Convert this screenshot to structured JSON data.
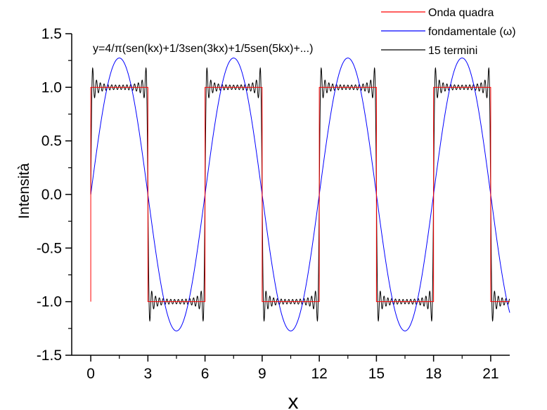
{
  "chart_data": {
    "type": "line",
    "title": "",
    "xlabel": "x",
    "ylabel": "Intensità",
    "xlim": [
      -1,
      22
    ],
    "ylim": [
      -1.5,
      1.5
    ],
    "x_ticks": [
      0,
      3,
      6,
      9,
      12,
      15,
      18,
      21
    ],
    "y_ticks": [
      1.5,
      1.0,
      0.5,
      0.0,
      -0.5,
      -1.0,
      -1.5
    ],
    "x_tick_labels": [
      "0",
      "3",
      "6",
      "9",
      "12",
      "15",
      "18",
      "21"
    ],
    "y_tick_labels": [
      "1.5",
      "1.0",
      "0.5",
      "0.0",
      "-0.5",
      "-1.0",
      "-1.5"
    ],
    "grid": false,
    "legend_position": "top-right",
    "annotation": "y=4/π(sen(kx)+1/3sen(3kx)+1/5sen(5kx)+...)",
    "series": [
      {
        "name": "Onda quadra",
        "color": "#ff0000",
        "x": [
          0,
          0,
          3,
          3,
          6,
          6,
          9,
          9,
          12,
          12,
          15,
          15,
          18,
          18,
          21,
          21,
          22
        ],
        "y": [
          -1,
          1,
          1,
          -1,
          -1,
          1,
          1,
          -1,
          -1,
          1,
          1,
          -1,
          -1,
          1,
          1,
          -1,
          -1
        ]
      },
      {
        "name": "fondamentale (ω)",
        "color": "#0000ff",
        "function": "y = 4/π · sin(πx/3)",
        "x_range": [
          0,
          22
        ]
      },
      {
        "name": "15 termini",
        "color": "#000000",
        "function": "y = 4/π · Σ sin((2n−1)πx/3)/(2n−1), n = 1…15",
        "terms": 15,
        "x_range": [
          0,
          22
        ]
      }
    ]
  }
}
